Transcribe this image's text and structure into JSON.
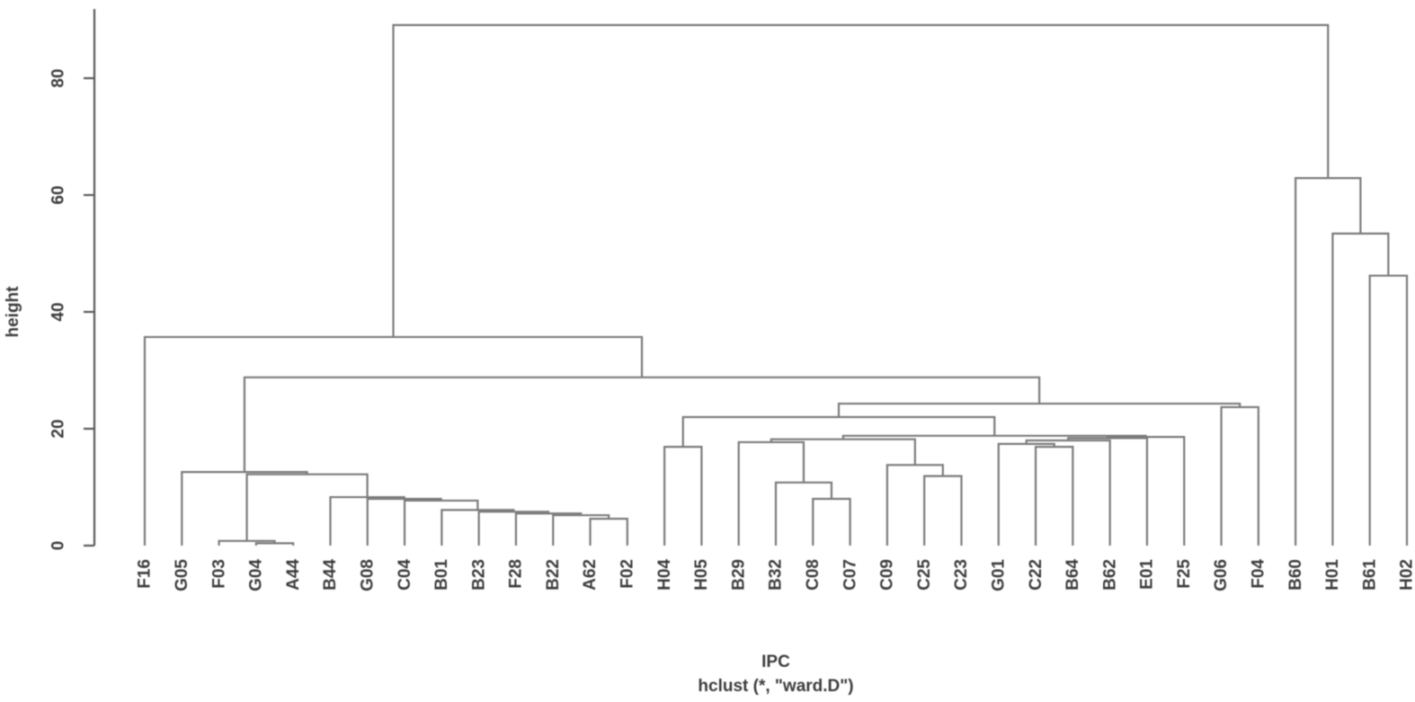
{
  "figure": {
    "ylab": "height",
    "xlab": "IPC",
    "subtitle": "hclust (*, \"ward.D\")",
    "colors": {
      "tree_line": "#7b7b7b",
      "axis_line": "#5a5a5a",
      "text": "#3d3d3d",
      "background": "#ffffff"
    }
  },
  "chart_data": {
    "type": "dendrogram",
    "title": "",
    "xlabel": "IPC",
    "ylabel": "height",
    "method": "hclust (*, \"ward.D\")",
    "grid": false,
    "legend": "none",
    "y_ticks": [
      0,
      20,
      40,
      60,
      80
    ],
    "ylim": [
      0,
      90
    ],
    "root_height": 89.1,
    "leaf_order": [
      "F16",
      "G05",
      "F03",
      "G04",
      "A44",
      "B44",
      "G08",
      "C04",
      "B01",
      "B23",
      "F28",
      "B22",
      "A62",
      "F02",
      "H04",
      "H05",
      "B29",
      "B32",
      "C08",
      "C07",
      "C09",
      "C25",
      "C23",
      "G01",
      "C22",
      "B64",
      "B62",
      "E01",
      "F25",
      "G06",
      "F04",
      "B60",
      "H01",
      "B61",
      "H02"
    ],
    "tree": {
      "h": 89.1,
      "l": {
        "h": 35.7,
        "l": "F16",
        "r": {
          "h": 28.8,
          "l": {
            "h": 12.6,
            "l": "G05",
            "r": {
              "h": 12.2,
              "l": {
                "h": 0.8,
                "l": "F03",
                "r": {
                  "h": 0.4,
                  "l": "G04",
                  "r": "A44"
                }
              },
              "r": {
                "h": 8.3,
                "l": "B44",
                "r": {
                  "h": 8.0,
                  "l": "G08",
                  "r": {
                    "h": 7.7,
                    "l": "C04",
                    "r": {
                      "h": 6.1,
                      "l": "B01",
                      "r": {
                        "h": 5.8,
                        "l": "B23",
                        "r": {
                          "h": 5.5,
                          "l": "F28",
                          "r": {
                            "h": 5.2,
                            "l": "B22",
                            "r": {
                              "h": 4.6,
                              "l": "A62",
                              "r": "F02"
                            }
                          }
                        }
                      }
                    }
                  }
                }
              }
            }
          },
          "r": {
            "h": 24.3,
            "l": {
              "h": 22.0,
              "l": {
                "h": 16.9,
                "l": "H04",
                "r": "H05"
              },
              "r": {
                "h": 18.8,
                "l": {
                  "h": 18.2,
                  "l": {
                    "h": 17.7,
                    "l": "B29",
                    "r": {
                      "h": 10.8,
                      "l": "B32",
                      "r": {
                        "h": 8.0,
                        "l": "C08",
                        "r": "C07"
                      }
                    }
                  },
                  "r": {
                    "h": 13.8,
                    "l": "C09",
                    "r": {
                      "h": 11.9,
                      "l": "C25",
                      "r": "C23"
                    }
                  }
                },
                "r": {
                  "h": 18.6,
                  "l": {
                    "h": 18.4,
                    "l": {
                      "h": 18.0,
                      "l": {
                        "h": 17.4,
                        "l": "G01",
                        "r": {
                          "h": 16.9,
                          "l": "C22",
                          "r": "B64"
                        }
                      },
                      "r": "B62"
                    },
                    "r": "E01"
                  },
                  "r": "F25"
                }
              }
            },
            "r": {
              "h": 23.7,
              "l": "G06",
              "r": "F04"
            }
          }
        }
      },
      "r": {
        "h": 62.9,
        "l": "B60",
        "r": {
          "h": 53.4,
          "l": "H01",
          "r": {
            "h": 46.2,
            "l": "B61",
            "r": "H02"
          }
        }
      }
    }
  }
}
